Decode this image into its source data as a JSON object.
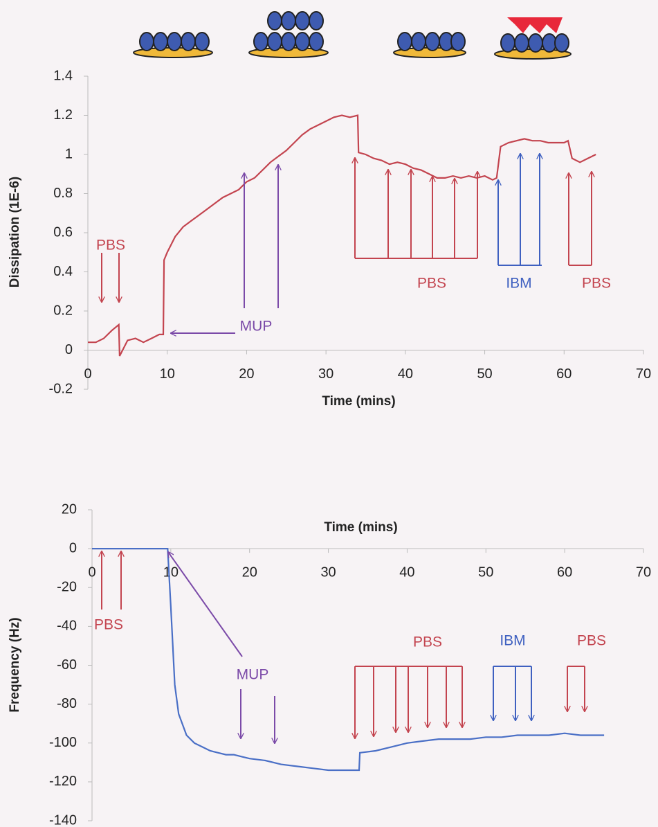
{
  "chart_data": [
    {
      "type": "line",
      "x_label": "Time (mins)",
      "y_label": "Dissipation (1E-6)",
      "xlim": [
        0,
        70
      ],
      "xticks": [
        0,
        10,
        20,
        30,
        40,
        50,
        60,
        70
      ],
      "ylim": [
        -0.2,
        1.4
      ],
      "yticks": [
        -0.2,
        0,
        0.2,
        0.4,
        0.6,
        0.8,
        1,
        1.2,
        1.4
      ],
      "series": [
        {
          "color": "#c3444f",
          "x": [
            0,
            1,
            2,
            3,
            3.9,
            4,
            5,
            6,
            7,
            8,
            9,
            9.5,
            9.6,
            10,
            11,
            12,
            13,
            14,
            15,
            16,
            17,
            18,
            19,
            20,
            21,
            22,
            23,
            24,
            25,
            26,
            27,
            28,
            29,
            30,
            31,
            32,
            33,
            34,
            34.1,
            35,
            36,
            37,
            38,
            39,
            40,
            41,
            42,
            43,
            44,
            45,
            46,
            47,
            48,
            49,
            50,
            51,
            51.5,
            52,
            53,
            54,
            55,
            56,
            57,
            58,
            59,
            60,
            60.5,
            61,
            62,
            63,
            64
          ],
          "values": [
            0.04,
            0.04,
            0.06,
            0.1,
            0.13,
            -0.03,
            0.05,
            0.06,
            0.04,
            0.06,
            0.08,
            0.08,
            0.46,
            0.5,
            0.58,
            0.63,
            0.66,
            0.69,
            0.72,
            0.75,
            0.78,
            0.8,
            0.82,
            0.86,
            0.88,
            0.92,
            0.96,
            0.99,
            1.02,
            1.06,
            1.1,
            1.13,
            1.15,
            1.17,
            1.19,
            1.2,
            1.19,
            1.2,
            1.01,
            1.0,
            0.98,
            0.97,
            0.95,
            0.96,
            0.95,
            0.93,
            0.92,
            0.9,
            0.88,
            0.88,
            0.89,
            0.88,
            0.89,
            0.88,
            0.89,
            0.87,
            0.88,
            1.04,
            1.06,
            1.07,
            1.08,
            1.07,
            1.07,
            1.06,
            1.06,
            1.06,
            1.07,
            0.98,
            0.96,
            0.98,
            1.0
          ]
        }
      ],
      "annotations": [
        "PBS",
        "MUP",
        "PBS",
        "IBM",
        "PBS"
      ]
    },
    {
      "type": "line",
      "x_label": "Time (mins)",
      "y_label": "Frequency (Hz)",
      "xlim": [
        0,
        70
      ],
      "xticks": [
        0,
        10,
        20,
        30,
        40,
        50,
        60,
        70
      ],
      "ylim": [
        -140,
        20
      ],
      "yticks": [
        -140,
        -120,
        -100,
        -80,
        -60,
        -40,
        -20,
        0,
        20
      ],
      "series": [
        {
          "color": "#4a6fc6",
          "x": [
            0,
            2,
            4,
            6,
            8,
            9.5,
            9.6,
            10,
            10.5,
            11,
            12,
            13,
            14,
            15,
            16,
            17,
            18,
            19,
            20,
            22,
            24,
            26,
            28,
            30,
            32,
            33.9,
            34,
            36,
            38,
            40,
            42,
            44,
            46,
            48,
            50,
            52,
            54,
            56,
            58,
            60,
            62,
            64,
            65
          ],
          "values": [
            0,
            0,
            0,
            0,
            0,
            0,
            0,
            -30,
            -70,
            -85,
            -96,
            -100,
            -102,
            -104,
            -105,
            -106,
            -106,
            -107,
            -108,
            -109,
            -111,
            -112,
            -113,
            -114,
            -114,
            -114,
            -105,
            -104,
            -102,
            -100,
            -99,
            -98,
            -98,
            -98,
            -97,
            -97,
            -96,
            -96,
            -96,
            -95,
            -96,
            -96,
            -96
          ]
        }
      ],
      "annotations": [
        "PBS",
        "MUP",
        "PBS",
        "IBM",
        "PBS"
      ]
    }
  ]
}
